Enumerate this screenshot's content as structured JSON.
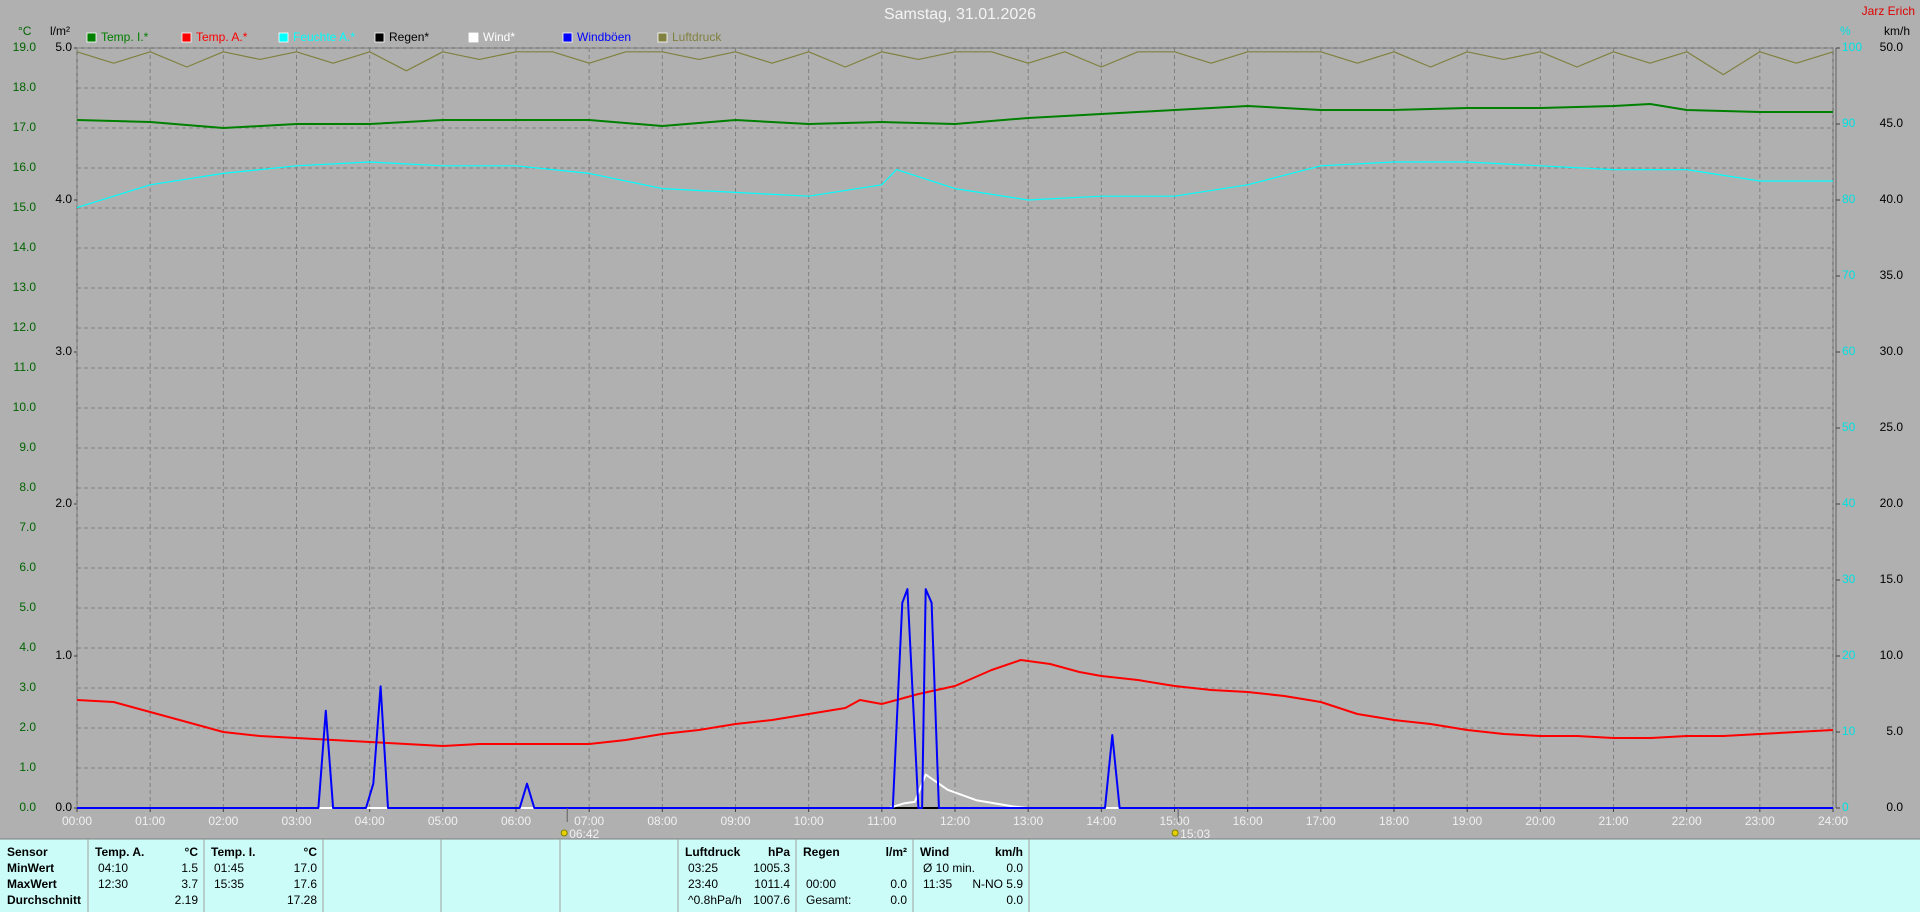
{
  "chart_data": {
    "type": "line",
    "title": "Samstag, 31.01.2026",
    "watermark": "Jarz Erich",
    "ylabel": "°C",
    "y2label": "km/h",
    "y3label": "%",
    "y4label": "l/m²",
    "xlim": [
      0,
      24
    ],
    "xticks": [
      {
        "value": 0,
        "label": "00:00"
      },
      {
        "value": 1,
        "label": "01:00"
      },
      {
        "value": 2,
        "label": "02:00"
      },
      {
        "value": 3,
        "label": "03:00"
      },
      {
        "value": 4,
        "label": "04:00"
      },
      {
        "value": 5,
        "label": "05:00"
      },
      {
        "value": 6,
        "label": "06:00"
      },
      {
        "value": 7,
        "label": "07:00"
      },
      {
        "value": 8,
        "label": "08:00"
      },
      {
        "value": 9,
        "label": "09:00"
      },
      {
        "value": 10,
        "label": "10:00"
      },
      {
        "value": 11,
        "label": "11:00"
      },
      {
        "value": 12,
        "label": "12:00"
      },
      {
        "value": 13,
        "label": "13:00"
      },
      {
        "value": 14,
        "label": "14:00"
      },
      {
        "value": 15,
        "label": "15:00"
      },
      {
        "value": 16,
        "label": "16:00"
      },
      {
        "value": 17,
        "label": "17:00"
      },
      {
        "value": 18,
        "label": "18:00"
      },
      {
        "value": 19,
        "label": "19:00"
      },
      {
        "value": 20,
        "label": "20:00"
      },
      {
        "value": 21,
        "label": "21:00"
      },
      {
        "value": 22,
        "label": "22:00"
      },
      {
        "value": 23,
        "label": "23:00"
      },
      {
        "value": 24,
        "label": "24:00"
      }
    ],
    "ylim": [
      0,
      19
    ],
    "yticks": [
      {
        "value": 0,
        "label": "0.0"
      },
      {
        "value": 1,
        "label": "1.0"
      },
      {
        "value": 2,
        "label": "2.0"
      },
      {
        "value": 3,
        "label": "3.0"
      },
      {
        "value": 4,
        "label": "4.0"
      },
      {
        "value": 5,
        "label": "5.0"
      },
      {
        "value": 6,
        "label": "6.0"
      },
      {
        "value": 7,
        "label": "7.0"
      },
      {
        "value": 8,
        "label": "8.0"
      },
      {
        "value": 9,
        "label": "9.0"
      },
      {
        "value": 10,
        "label": "10.0"
      },
      {
        "value": 11,
        "label": "11.0"
      },
      {
        "value": 12,
        "label": "12.0"
      },
      {
        "value": 13,
        "label": "13.0"
      },
      {
        "value": 14,
        "label": "14.0"
      },
      {
        "value": 15,
        "label": "15.0"
      },
      {
        "value": 16,
        "label": "16.0"
      },
      {
        "value": 17,
        "label": "17.0"
      },
      {
        "value": 18,
        "label": "18.0"
      },
      {
        "value": 19,
        "label": "19.0"
      }
    ],
    "y2lim": [
      0,
      50
    ],
    "y2ticks": [
      {
        "value": 0,
        "label": "0.0"
      },
      {
        "value": 5,
        "label": "5.0"
      },
      {
        "value": 10,
        "label": "10.0"
      },
      {
        "value": 15,
        "label": "15.0"
      },
      {
        "value": 20,
        "label": "20.0"
      },
      {
        "value": 25,
        "label": "25.0"
      },
      {
        "value": 30,
        "label": "30.0"
      },
      {
        "value": 35,
        "label": "35.0"
      },
      {
        "value": 40,
        "label": "40.0"
      },
      {
        "value": 45,
        "label": "45.0"
      },
      {
        "value": 50,
        "label": "50.0"
      }
    ],
    "y3lim": [
      0,
      100
    ],
    "y3ticks": [
      0,
      10,
      20,
      30,
      40,
      50,
      60,
      70,
      80,
      90,
      100
    ],
    "y4lim": [
      0,
      5
    ],
    "y4ticks": [
      {
        "value": 0,
        "label": "0.0"
      },
      {
        "value": 1,
        "label": "1.0"
      },
      {
        "value": 2,
        "label": "2.0"
      },
      {
        "value": 3,
        "label": "3.0"
      },
      {
        "value": 4,
        "label": "4.0"
      },
      {
        "value": 5,
        "label": "5.0"
      }
    ],
    "grid": true,
    "series": [
      {
        "name": "Temp. I.*",
        "color": "#008000",
        "axis": "y",
        "x": [
          0,
          1,
          2,
          3,
          4,
          5,
          6,
          7,
          8,
          9,
          10,
          11,
          12,
          13,
          14,
          15,
          16,
          17,
          18,
          19,
          20,
          21,
          21.5,
          22,
          23,
          24
        ],
        "values": [
          17.2,
          17.15,
          17.0,
          17.1,
          17.1,
          17.2,
          17.2,
          17.2,
          17.05,
          17.2,
          17.1,
          17.15,
          17.1,
          17.25,
          17.35,
          17.45,
          17.55,
          17.45,
          17.45,
          17.5,
          17.5,
          17.55,
          17.6,
          17.45,
          17.4,
          17.4
        ]
      },
      {
        "name": "Temp. A.*",
        "color": "#ff0000",
        "axis": "y",
        "x": [
          0,
          0.5,
          1,
          1.5,
          2,
          2.5,
          3,
          3.5,
          4,
          4.5,
          5,
          5.5,
          6,
          6.5,
          7,
          7.5,
          8,
          8.5,
          9,
          9.5,
          10,
          10.5,
          10.7,
          11,
          11.5,
          12,
          12.5,
          12.9,
          13.3,
          13.7,
          14,
          14.5,
          15,
          15.5,
          16,
          16.5,
          17,
          17.5,
          18,
          18.5,
          19,
          19.5,
          20,
          20.5,
          21,
          21.5,
          22,
          22.5,
          23,
          23.5,
          24
        ],
        "values": [
          2.7,
          2.65,
          2.4,
          2.15,
          1.9,
          1.8,
          1.75,
          1.7,
          1.65,
          1.6,
          1.55,
          1.6,
          1.6,
          1.6,
          1.6,
          1.7,
          1.85,
          1.95,
          2.1,
          2.2,
          2.35,
          2.5,
          2.7,
          2.6,
          2.85,
          3.05,
          3.45,
          3.7,
          3.6,
          3.4,
          3.3,
          3.2,
          3.05,
          2.95,
          2.9,
          2.8,
          2.65,
          2.35,
          2.2,
          2.1,
          1.95,
          1.85,
          1.8,
          1.8,
          1.75,
          1.75,
          1.8,
          1.8,
          1.85,
          1.9,
          1.95
        ]
      },
      {
        "name": "Feuchte A.*",
        "color": "#00ffff",
        "axis": "y3",
        "x": [
          0,
          1,
          2,
          3,
          4,
          5,
          6,
          7,
          8,
          9,
          10,
          11,
          11.2,
          12,
          13,
          14,
          15,
          16,
          17,
          18,
          19,
          20,
          21,
          22,
          23,
          24
        ],
        "values": [
          79,
          82,
          83.5,
          84.5,
          85,
          84.5,
          84.5,
          83.5,
          81.5,
          81,
          80.5,
          82,
          84,
          81.5,
          80,
          80.5,
          80.5,
          82,
          84.5,
          85,
          85,
          84.5,
          84,
          84,
          82.5,
          82.5
        ]
      },
      {
        "name": "Regen*",
        "color": "#000000",
        "axis": "y4",
        "x": [
          0,
          24
        ],
        "values": [
          0,
          0
        ]
      },
      {
        "name": "Wind*",
        "color": "#ffffff",
        "axis": "y2",
        "x": [
          0,
          11.1,
          11.3,
          11.45,
          11.6,
          11.9,
          12.3,
          12.8,
          13,
          24
        ],
        "values": [
          0,
          0,
          0.3,
          0.4,
          2.2,
          1.2,
          0.5,
          0.1,
          0,
          0
        ]
      },
      {
        "name": "Windböen",
        "color": "#0000ff",
        "axis": "y2",
        "x": [
          0,
          3.3,
          3.4,
          3.5,
          3.95,
          4.05,
          4.15,
          4.25,
          6.05,
          6.15,
          6.25,
          11.15,
          11.28,
          11.35,
          11.5,
          11.55,
          11.6,
          11.68,
          11.78,
          14.05,
          14.15,
          14.25,
          24
        ],
        "values": [
          0,
          0,
          6.4,
          0,
          0,
          1.6,
          8.0,
          0,
          0,
          1.6,
          0,
          0,
          13.5,
          14.4,
          0,
          0,
          14.4,
          13.5,
          0,
          0,
          4.8,
          0,
          0
        ]
      },
      {
        "name": "Luftdruck",
        "color": "#808040",
        "axis": "y3",
        "x": [
          0,
          0.5,
          1,
          1.5,
          2,
          2.5,
          3,
          3.5,
          4,
          4.5,
          5,
          5.5,
          6,
          6.5,
          7,
          7.5,
          8,
          8.5,
          9,
          9.5,
          10,
          10.5,
          11,
          11.5,
          12,
          12.5,
          13,
          13.5,
          14,
          14.5,
          15,
          15.5,
          16,
          16.5,
          17,
          17.5,
          18,
          18.5,
          19,
          19.5,
          20,
          20.5,
          21,
          21.5,
          22,
          22.5,
          23,
          23.5,
          24
        ],
        "values": [
          99.5,
          98,
          99.5,
          97.5,
          99.5,
          98.5,
          99.5,
          98,
          99.5,
          97,
          99.5,
          98.5,
          99.5,
          99.5,
          98,
          99.5,
          99.5,
          98.5,
          99.5,
          98,
          99.5,
          97.5,
          99.5,
          98.5,
          99.5,
          99.5,
          98,
          99.5,
          97.5,
          99.5,
          99.5,
          98,
          99.5,
          99.5,
          99.5,
          98,
          99.5,
          97.5,
          99.5,
          98.5,
          99.5,
          97.5,
          99.5,
          98,
          99.5,
          96.5,
          99.5,
          98,
          99.5
        ]
      }
    ],
    "annotations": [
      {
        "x": 6.7,
        "label": "06:42"
      },
      {
        "x": 15.05,
        "label": "15:03"
      }
    ]
  },
  "table": {
    "header": [
      {
        "label": "Sensor"
      },
      {
        "label": "Temp. A.",
        "unit": "°C"
      },
      {
        "label": "Temp. I.",
        "unit": "°C"
      },
      {
        "label": "Luftdruck",
        "unit": "hPa"
      },
      {
        "label": "Regen",
        "unit": "l/m²"
      },
      {
        "label": "Wind",
        "unit": "km/h"
      }
    ],
    "rows": [
      {
        "label": "MinWert",
        "cells": [
          {
            "time": "04:10",
            "value": "1.5"
          },
          {
            "time": "01:45",
            "value": "17.0"
          },
          {
            "time": "03:25",
            "value": "1005.3"
          },
          null,
          {
            "time": "Ø 10 min.",
            "value": "0.0"
          }
        ]
      },
      {
        "label": "MaxWert",
        "cells": [
          {
            "time": "12:30",
            "value": "3.7"
          },
          {
            "time": "15:35",
            "value": "17.6"
          },
          {
            "time": "23:40",
            "value": "1011.4"
          },
          {
            "time": "00:00",
            "value": "0.0"
          },
          {
            "time": "11:35",
            "value": "N-NO 5.9"
          }
        ]
      },
      {
        "label": "Durchschnitt",
        "cells": [
          {
            "value": "2.19"
          },
          {
            "value": "17.28"
          },
          {
            "time": "^0.8hPa/h",
            "value": "1007.6"
          },
          {
            "time": "Gesamt:",
            "value": "0.0"
          },
          {
            "value": "0.0"
          }
        ]
      }
    ]
  }
}
